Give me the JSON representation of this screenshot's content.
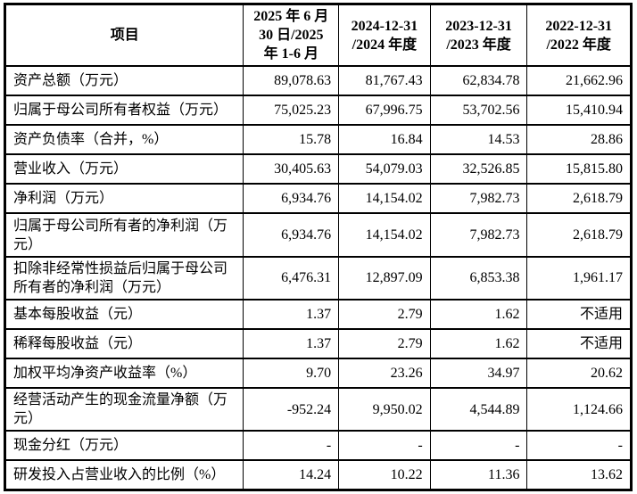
{
  "table": {
    "header": {
      "item_col": "项目",
      "period_cols": [
        "2025 年 6 月\n30 日/2025\n年 1-6 月",
        "2024-12-31\n/2024 年度",
        "2023-12-31\n/2023 年度",
        "2022-12-31\n/2022 年度"
      ]
    },
    "rows": [
      {
        "label": "资产总额（万元）",
        "values": [
          "89,078.63",
          "81,767.43",
          "62,834.78",
          "21,662.96"
        ]
      },
      {
        "label": "归属于母公司所有者权益（万元）",
        "values": [
          "75,025.23",
          "67,996.75",
          "53,702.56",
          "15,410.94"
        ]
      },
      {
        "label": "资产负债率（合并，%）",
        "values": [
          "15.78",
          "16.84",
          "14.53",
          "28.86"
        ]
      },
      {
        "label": "营业收入（万元）",
        "values": [
          "30,405.63",
          "54,079.03",
          "32,526.85",
          "15,815.80"
        ]
      },
      {
        "label": "净利润（万元）",
        "values": [
          "6,934.76",
          "14,154.02",
          "7,982.73",
          "2,618.79"
        ]
      },
      {
        "label": "归属于母公司所有者的净利润（万元）",
        "values": [
          "6,934.76",
          "14,154.02",
          "7,982.73",
          "2,618.79"
        ]
      },
      {
        "label": "扣除非经常性损益后归属于母公司所有者的净利润（万元）",
        "values": [
          "6,476.31",
          "12,897.09",
          "6,853.38",
          "1,961.17"
        ]
      },
      {
        "label": "基本每股收益（元）",
        "values": [
          "1.37",
          "2.79",
          "1.62",
          "不适用"
        ]
      },
      {
        "label": "稀释每股收益（元）",
        "values": [
          "1.37",
          "2.79",
          "1.62",
          "不适用"
        ]
      },
      {
        "label": "加权平均净资产收益率（%）",
        "values": [
          "9.70",
          "23.26",
          "34.97",
          "20.62"
        ]
      },
      {
        "label": "经营活动产生的现金流量净额（万元）",
        "values": [
          "-952.24",
          "9,950.02",
          "4,544.89",
          "1,124.66"
        ]
      },
      {
        "label": "现金分红（万元）",
        "values": [
          "-",
          "-",
          "-",
          "-"
        ]
      },
      {
        "label": "研发投入占营业收入的比例（%）",
        "values": [
          "14.24",
          "10.22",
          "11.36",
          "13.62"
        ]
      }
    ]
  }
}
